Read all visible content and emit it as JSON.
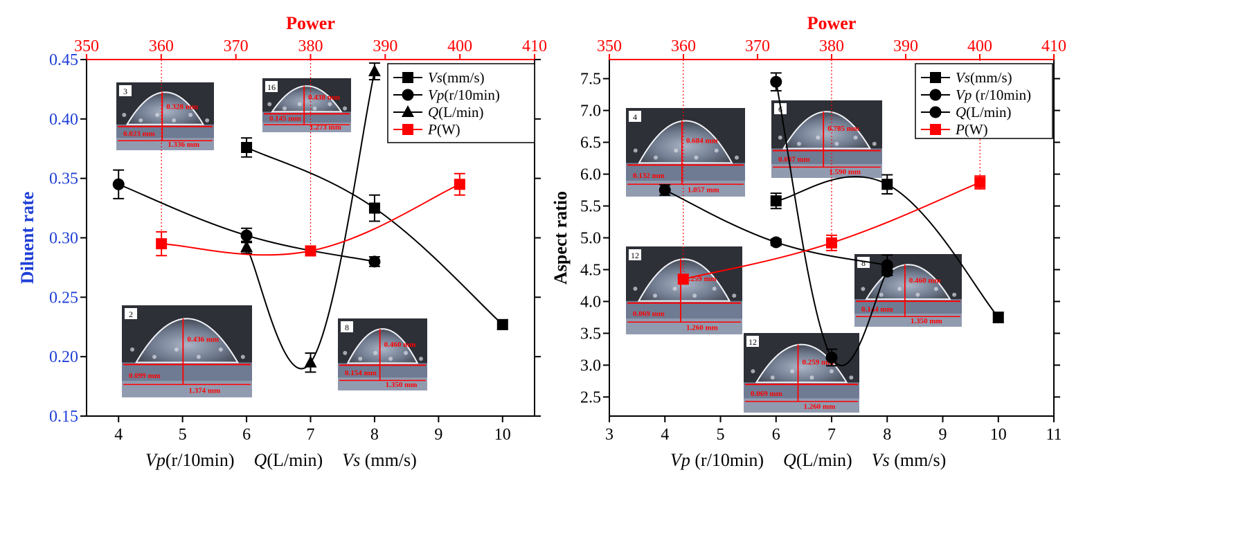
{
  "colors": {
    "axis": "#000000",
    "red": "#ff0000",
    "blue": "#1f3fd6",
    "photo_dark": "#2a2a2a",
    "photo_mid": "#7d8799",
    "photo_light": "#c9d0dc"
  },
  "chart_data": [
    {
      "type": "line",
      "ylabel": "Diluent rate",
      "x_label_parts": [
        {
          "text": "Vp",
          "italic": true
        },
        {
          "text": "(r/10min)",
          "italic": false
        },
        {
          "text": "Q",
          "italic": true
        },
        {
          "text": "(L/min)",
          "italic": false
        },
        {
          "text": "Vs",
          "italic": true
        },
        {
          "text": " (mm/s)",
          "italic": false
        }
      ],
      "top_axis_label": "Power",
      "xlim": [
        3.5,
        10.5
      ],
      "ylim": [
        0.15,
        0.45
      ],
      "top_xlim": [
        350,
        410
      ],
      "x_ticks": [
        4,
        5,
        6,
        7,
        8,
        9,
        10
      ],
      "y_ticks": [
        "0.15",
        "0.20",
        "0.25",
        "0.30",
        "0.35",
        "0.40",
        "0.45"
      ],
      "top_ticks": [
        350,
        360,
        370,
        380,
        390,
        400,
        410
      ],
      "power_guides": [
        4.67,
        7.0
      ],
      "series": [
        {
          "name": "Vs",
          "unit": "(mm/s)",
          "marker": "square",
          "color": "#000000",
          "x": [
            6,
            8,
            10
          ],
          "y": [
            0.376,
            0.325,
            0.227
          ],
          "err": [
            0.008,
            0.011,
            0.004
          ]
        },
        {
          "name": "Vp",
          "unit": "(r/10min)",
          "marker": "circle",
          "color": "#000000",
          "x": [
            4,
            6,
            8
          ],
          "y": [
            0.345,
            0.302,
            0.28
          ],
          "err": [
            0.012,
            0.006,
            0.004
          ]
        },
        {
          "name": "Q",
          "unit": "(L/min)",
          "marker": "triangle",
          "color": "#000000",
          "x": [
            6,
            7,
            8
          ],
          "y": [
            0.292,
            0.195,
            0.44
          ],
          "err": [
            0.005,
            0.008,
            0.007
          ]
        },
        {
          "name": "P",
          "unit": "(W)",
          "marker": "square",
          "color": "#ff0000",
          "x": [
            4.67,
            7.0,
            9.33
          ],
          "y": [
            0.295,
            0.289,
            0.345
          ],
          "err": [
            0.01,
            0.004,
            0.009
          ]
        }
      ],
      "insets": [
        {
          "tag": "3",
          "label_a": "0.023 mm",
          "label_b": "1.336 mm",
          "label_c": "0.328 mm"
        },
        {
          "tag": "16",
          "label_a": "0.145 mm",
          "label_b": "1.273 mm",
          "label_c": "0.438 mm"
        },
        {
          "tag": "2",
          "label_a": "0.099 mm",
          "label_b": "1.374 mm",
          "label_c": "0.436 mm"
        },
        {
          "tag": "8",
          "label_a": "0.154 mm",
          "label_b": "1.350 mm",
          "label_c": "0.460 mm"
        }
      ]
    },
    {
      "type": "line",
      "ylabel": "Aspect ratio",
      "x_label_parts": [
        {
          "text": "Vp",
          "italic": true
        },
        {
          "text": " (r/10min)",
          "italic": false
        },
        {
          "text": "Q",
          "italic": true
        },
        {
          "text": "(L/min)",
          "italic": false
        },
        {
          "text": "Vs",
          "italic": true
        },
        {
          "text": " (mm/s)",
          "italic": false
        }
      ],
      "top_axis_label": "Power",
      "xlim": [
        3,
        11
      ],
      "ylim": [
        2.2,
        7.8
      ],
      "top_xlim": [
        350,
        410
      ],
      "x_ticks": [
        3,
        4,
        5,
        6,
        7,
        8,
        9,
        10,
        11
      ],
      "y_ticks": [
        "2.5",
        "3.0",
        "3.5",
        "4.0",
        "4.5",
        "5.0",
        "5.5",
        "6.0",
        "6.5",
        "7.0",
        "7.5"
      ],
      "top_ticks": [
        350,
        360,
        370,
        380,
        390,
        400,
        410
      ],
      "power_guides": [
        4.33,
        7.0,
        9.67
      ],
      "series": [
        {
          "name": "Vs",
          "unit": "(mm/s)",
          "marker": "square",
          "color": "#000000",
          "x": [
            6,
            8,
            10
          ],
          "y": [
            5.58,
            5.84,
            3.75
          ],
          "err": [
            0.12,
            0.15,
            0.08
          ]
        },
        {
          "name": "Vp",
          "unit": " (r/10min)",
          "marker": "circle",
          "color": "#000000",
          "x": [
            4,
            6,
            8
          ],
          "y": [
            5.75,
            4.93,
            4.57
          ],
          "err": [
            0.08,
            0.05,
            0.16
          ]
        },
        {
          "name": "Q",
          "unit": "(L/min)",
          "marker": "circle",
          "color": "#000000",
          "x": [
            6,
            7,
            8
          ],
          "y": [
            7.45,
            3.12,
            4.47
          ],
          "err": [
            0.14,
            0.13,
            0.06
          ]
        },
        {
          "name": "P",
          "unit": "(W)",
          "marker": "square",
          "color": "#ff0000",
          "x": [
            4.33,
            7.0,
            9.67
          ],
          "y": [
            4.35,
            4.92,
            5.87
          ],
          "err": [
            0.07,
            0.12,
            0.1
          ]
        }
      ],
      "insets": [
        {
          "tag": "4",
          "label_a": "0.132 mm",
          "label_b": "1.057 mm",
          "label_c": "0.684 mm"
        },
        {
          "tag": "6",
          "label_a": "0.037 mm",
          "label_b": "1.590 mm",
          "label_c": "0.785 mm"
        },
        {
          "tag": "12",
          "label_a": "0.069 mm",
          "label_b": "1.260 mm",
          "label_c": "0.259 mm"
        },
        {
          "tag": "8",
          "label_a": "0.144 mm",
          "label_b": "1.350 mm",
          "label_c": "0.460 mm"
        },
        {
          "tag": "12",
          "label_a": "0.069 mm",
          "label_b": "1.260 mm",
          "label_c": "0.259 mm"
        }
      ]
    }
  ]
}
